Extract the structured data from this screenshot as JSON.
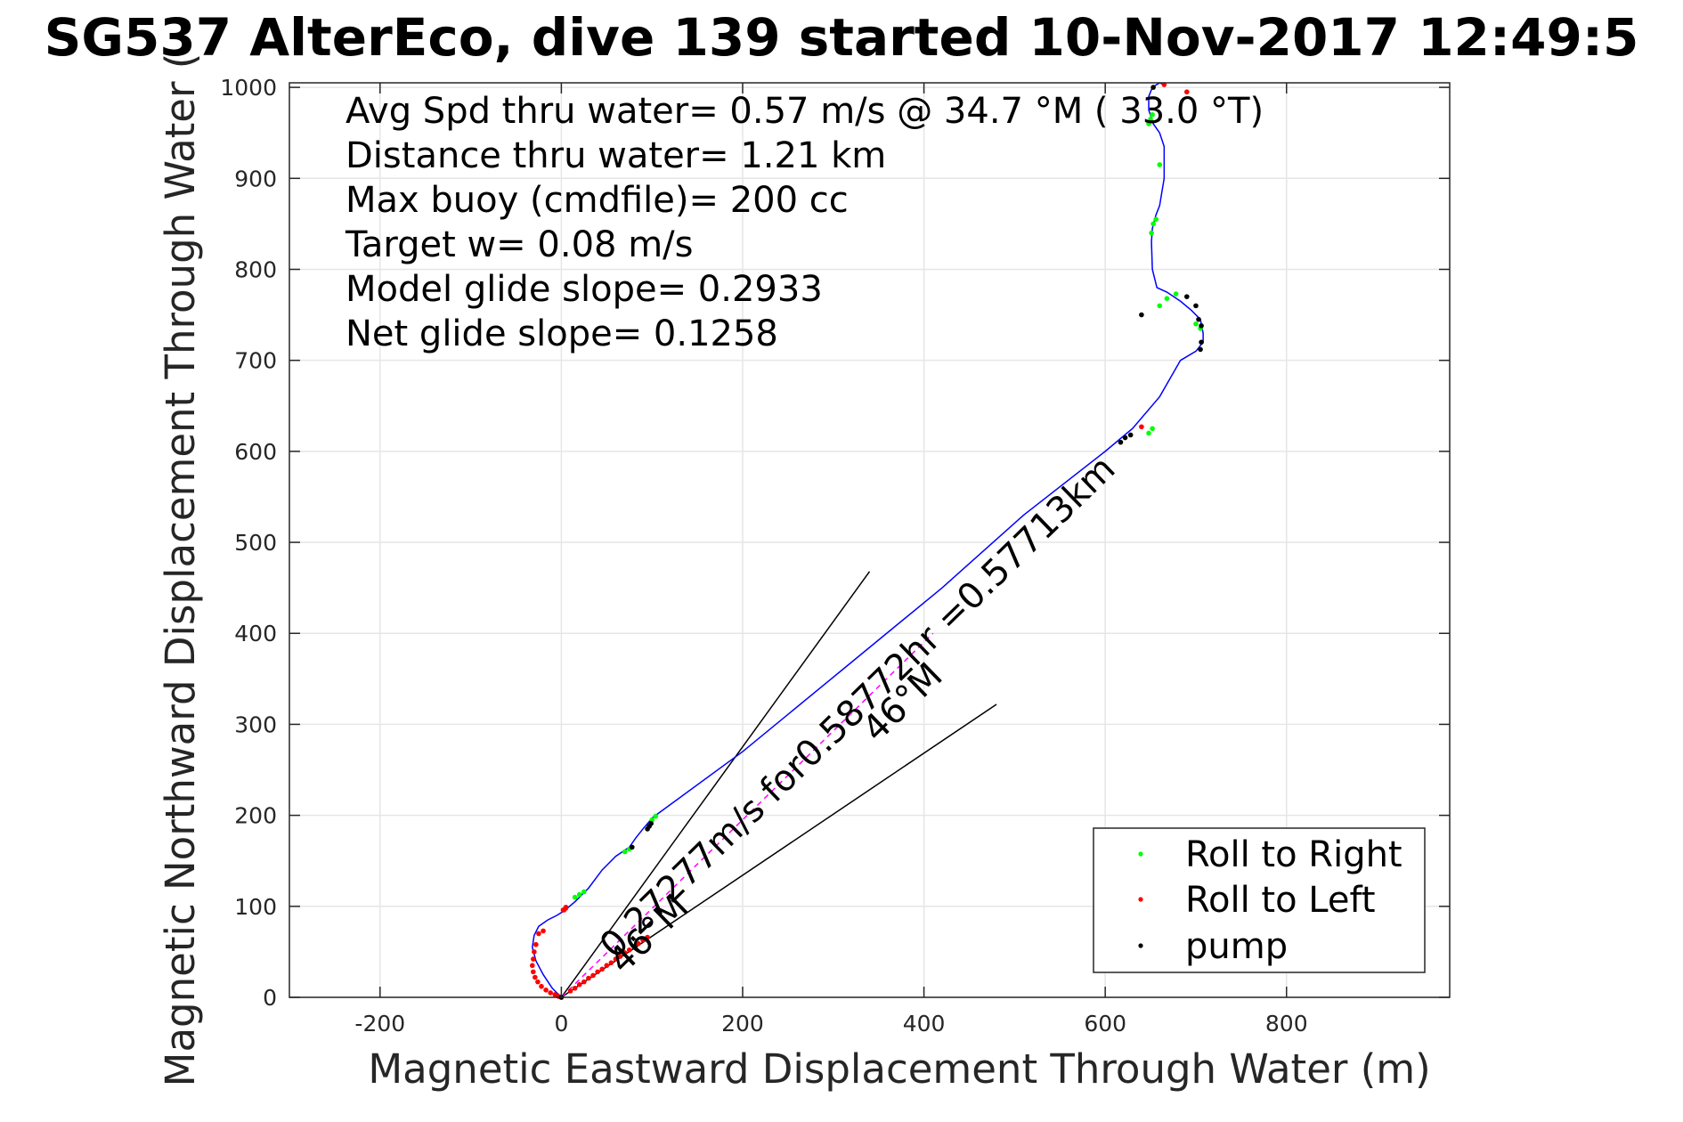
{
  "chart_data": {
    "type": "scatter",
    "title": "SG537 AlterEco, dive 139 started 10-Nov-2017 12:49:5",
    "xlabel": "Magnetic Eastward Displacement Through Water (m)",
    "ylabel": "Magnetic Northward Displacement Through Water (",
    "xlim": [
      -300,
      980
    ],
    "ylim": [
      0,
      1005
    ],
    "xticks": [
      -200,
      0,
      200,
      400,
      600,
      800
    ],
    "yticks": [
      0,
      100,
      200,
      300,
      400,
      500,
      600,
      700,
      800,
      900,
      1000
    ],
    "grid": true,
    "annotations": [
      "Avg Spd thru water=  0.57 m/s @  34.7 °M ( 33.0 °T)",
      "Distance thru water=  1.21 km",
      "Max buoy (cmdfile)= 200 cc",
      "Target w= 0.08 m/s",
      "Model glide slope= 0.2933",
      "Net glide slope= 0.1258"
    ],
    "track": {
      "x": [
        0,
        -10,
        -20,
        -28,
        -32,
        -30,
        -25,
        -15,
        -5,
        3,
        15,
        30,
        45,
        60,
        75,
        82,
        90,
        96,
        100,
        104,
        200,
        310,
        420,
        510,
        600,
        630,
        660,
        683,
        700,
        708,
        708,
        705,
        695,
        683,
        668,
        657,
        652,
        651,
        652,
        656,
        660,
        665,
        665,
        660,
        653,
        648,
        648,
        652,
        660,
        665
      ],
      "y": [
        0,
        10,
        25,
        40,
        55,
        68,
        78,
        85,
        90,
        95,
        105,
        120,
        140,
        155,
        165,
        175,
        185,
        192,
        197,
        200,
        270,
        360,
        450,
        530,
        600,
        625,
        660,
        700,
        710,
        720,
        730,
        745,
        755,
        765,
        775,
        780,
        800,
        830,
        845,
        860,
        870,
        900,
        935,
        950,
        960,
        975,
        990,
        1000,
        1005,
        1003
      ]
    },
    "roll_right": {
      "x": [
        15,
        20,
        25,
        70,
        75,
        100,
        104,
        648,
        652,
        660,
        668,
        678,
        700,
        705,
        651,
        653,
        656,
        660,
        648,
        650,
        652
      ],
      "y": [
        110,
        113,
        116,
        160,
        163,
        195,
        199,
        620,
        625,
        760,
        768,
        773,
        740,
        735,
        840,
        850,
        855,
        915,
        960,
        965,
        970
      ]
    },
    "roll_left": {
      "x": [
        -28,
        -30,
        -31,
        -32,
        -31,
        -29,
        -26,
        -22,
        -17,
        -12,
        -7,
        -3,
        0,
        2,
        5,
        10,
        15,
        20,
        25,
        30,
        35,
        40,
        45,
        50,
        55,
        60,
        65,
        70,
        75,
        80,
        85,
        90,
        95,
        -25,
        -20,
        3,
        5,
        640,
        665,
        690
      ],
      "y": [
        58,
        50,
        42,
        35,
        28,
        22,
        17,
        12,
        8,
        5,
        3,
        1,
        0,
        96,
        98,
        7,
        10,
        14,
        17,
        21,
        24,
        28,
        31,
        35,
        38,
        42,
        45,
        49,
        52,
        56,
        59,
        63,
        66,
        70,
        73,
        96,
        99,
        627,
        1003,
        995
      ]
    },
    "pump": {
      "x": [
        0,
        78,
        95,
        97,
        99,
        617,
        622,
        628,
        703,
        706,
        706,
        705,
        700,
        690,
        640,
        653
      ],
      "y": [
        0,
        165,
        185,
        188,
        191,
        610,
        615,
        618,
        745,
        738,
        720,
        712,
        760,
        770,
        750,
        1000
      ]
    },
    "heading_lines": {
      "origin": [
        0,
        0
      ],
      "center_end": [
        410,
        400
      ],
      "left_end": [
        340,
        468
      ],
      "right_end": [
        480,
        322
      ]
    },
    "rotated_labels": {
      "long_label": "0.27277m/s for0.58772hr =0.57713km",
      "heading_label_main": "46°M",
      "heading_label_small": "46°M"
    },
    "legend": {
      "placement": "bottom-right",
      "entries": [
        {
          "name": "Roll to Right",
          "color": "#00ff00"
        },
        {
          "name": "Roll to Left",
          "color": "#ff0000"
        },
        {
          "name": "pump",
          "color": "#000000"
        }
      ]
    },
    "colors": {
      "track": "#0000ff",
      "mean_line": "#ff00ff",
      "heading_lines": "#000000",
      "grid": "#e6e6e6",
      "axes": "#262626"
    }
  }
}
